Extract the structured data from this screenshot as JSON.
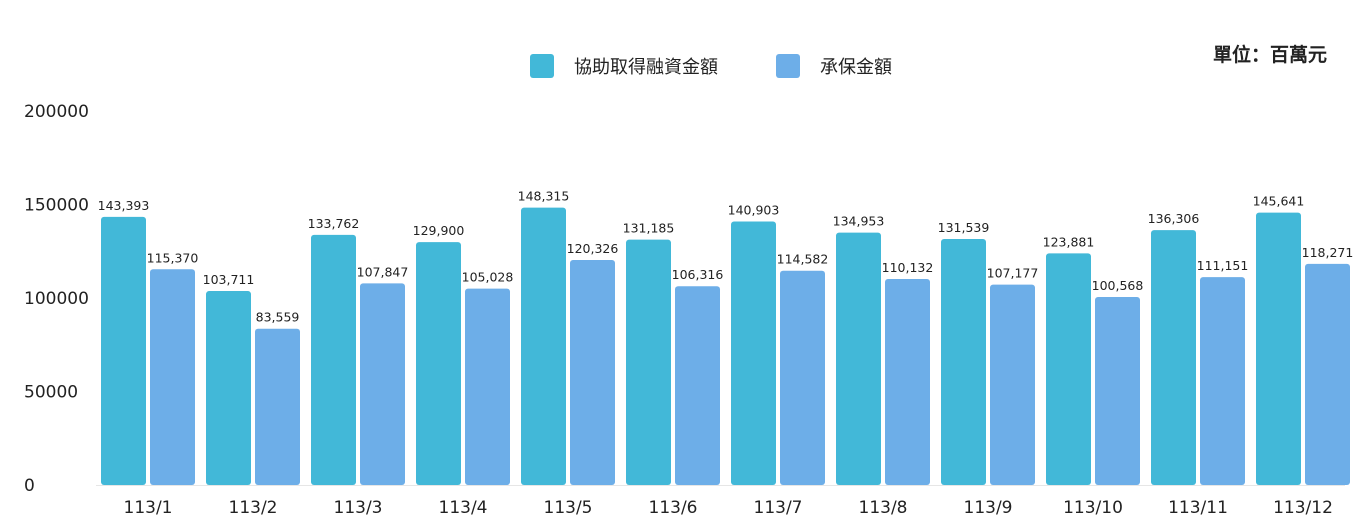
{
  "unit_label": "單位：百萬元",
  "chart_data": {
    "type": "bar",
    "categories": [
      "113/1",
      "113/2",
      "113/3",
      "113/4",
      "113/5",
      "113/6",
      "113/7",
      "113/8",
      "113/9",
      "113/10",
      "113/11",
      "113/12"
    ],
    "series": [
      {
        "name": "協助取得融資金額",
        "color": "#42b8d8",
        "values": [
          143393,
          103711,
          133762,
          129900,
          148315,
          131185,
          140903,
          134953,
          131539,
          123881,
          136306,
          145641
        ],
        "labels": [
          "143,393",
          "103,711",
          "133,762",
          "129,900",
          "148,315",
          "131,185",
          "140,903",
          "134,953",
          "131,539",
          "123,881",
          "136,306",
          "145,641"
        ]
      },
      {
        "name": "承保金額",
        "color": "#6daee8",
        "values": [
          115370,
          83559,
          107847,
          105028,
          120326,
          106316,
          114582,
          110132,
          107177,
          100568,
          111151,
          118271
        ],
        "labels": [
          "115,370",
          "83,559",
          "107,847",
          "105,028",
          "120,326",
          "106,316",
          "114,582",
          "110,132",
          "107,177",
          "100,568",
          "111,151",
          "118,271"
        ]
      }
    ],
    "yticks": [
      "0",
      "50000",
      "100000",
      "150000",
      "200000"
    ],
    "ylim": [
      0,
      200000
    ],
    "grid": false,
    "legend_position": "top-center"
  }
}
